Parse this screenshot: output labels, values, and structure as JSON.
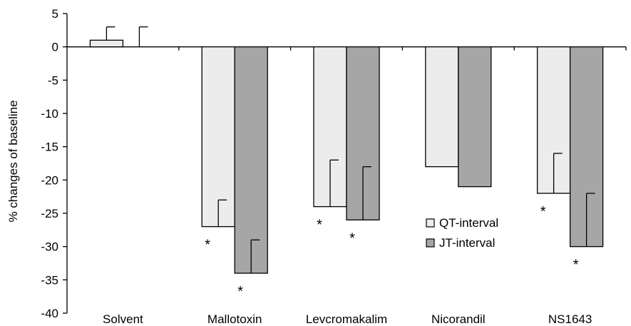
{
  "chart_data": {
    "type": "bar",
    "title": "",
    "xlabel": "",
    "ylabel": "% changes of baseline",
    "ylim": [
      -40,
      5
    ],
    "yticks": [
      5,
      0,
      -5,
      -10,
      -15,
      -20,
      -25,
      -30,
      -35,
      -40
    ],
    "yticklabels": [
      "5",
      "0",
      "-5",
      "-10",
      "-15",
      "-20",
      "-25",
      "-30",
      "-35",
      "-40"
    ],
    "categories": [
      "Solvent",
      "Mallotoxin",
      "Levcromakalim",
      "Nicorandil",
      "NS1643"
    ],
    "series": [
      {
        "name": "QT-interval",
        "color": "#ececec",
        "values": [
          1,
          -27,
          -24,
          -18,
          -22
        ],
        "error_upper": [
          2,
          4,
          7,
          null,
          6
        ],
        "significant": [
          false,
          true,
          true,
          false,
          true
        ]
      },
      {
        "name": "JT-interval",
        "color": "#a6a6a6",
        "values": [
          0,
          -34,
          -26,
          -21,
          -30
        ],
        "error_upper": [
          3,
          5,
          8,
          null,
          8
        ],
        "significant": [
          false,
          true,
          true,
          false,
          true
        ]
      }
    ],
    "significance_marker": "*",
    "legend_position": "lower-right",
    "grid": false
  }
}
